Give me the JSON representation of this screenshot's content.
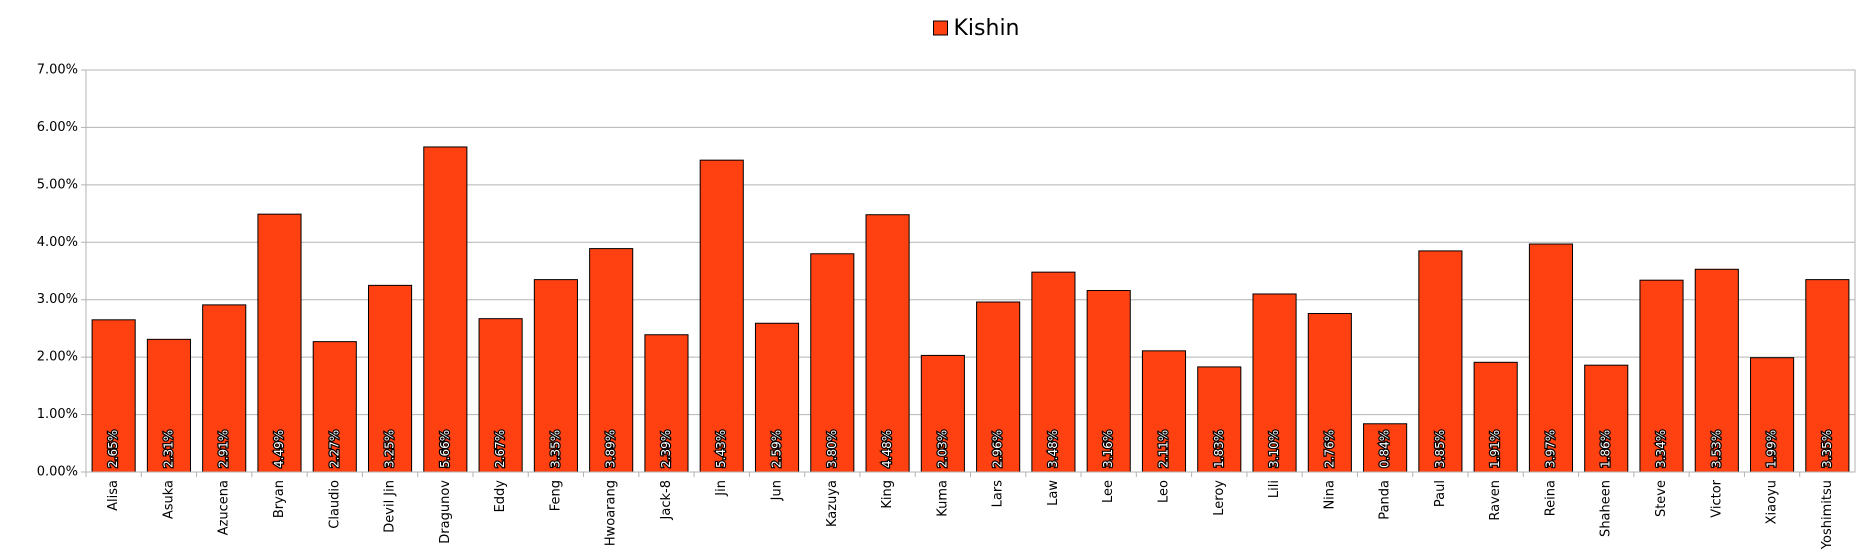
{
  "chart_data": {
    "type": "bar",
    "categories": [
      "Alisa",
      "Asuka",
      "Azucena",
      "Bryan",
      "Claudio",
      "Devil Jin",
      "Dragunov",
      "Eddy",
      "Feng",
      "Hwoarang",
      "Jack-8",
      "Jin",
      "Jun",
      "Kazuya",
      "King",
      "Kuma",
      "Lars",
      "Law",
      "Lee",
      "Leo",
      "Leroy",
      "Lili",
      "Nina",
      "Panda",
      "Paul",
      "Raven",
      "Reina",
      "Shaheen",
      "Steve",
      "Victor",
      "Xiaoyu",
      "Yoshimitsu"
    ],
    "series": [
      {
        "name": "Kishin",
        "color": "#ff4010",
        "values": [
          2.65,
          2.31,
          2.91,
          4.49,
          2.27,
          3.25,
          5.66,
          2.67,
          3.35,
          3.89,
          2.39,
          5.43,
          2.59,
          3.8,
          4.48,
          2.03,
          2.96,
          3.48,
          3.16,
          2.11,
          1.83,
          3.1,
          2.76,
          0.84,
          3.85,
          1.91,
          3.97,
          1.86,
          3.34,
          3.53,
          1.99,
          3.35
        ],
        "value_labels": [
          "2.65%",
          "2.31%",
          "2.91%",
          "4.49%",
          "2.27%",
          "3.25%",
          "5.66%",
          "2.67%",
          "3.35%",
          "3.89%",
          "2.39%",
          "5.43%",
          "2.59%",
          "3.80%",
          "4.48%",
          "2.03%",
          "2.96%",
          "3.48%",
          "3.16%",
          "2.11%",
          "1.83%",
          "3.10%",
          "2.76%",
          "0.84%",
          "3.85%",
          "1.91%",
          "3.97%",
          "1.86%",
          "3.34%",
          "3.53%",
          "1.99%",
          "3.35%"
        ]
      }
    ],
    "ylim": [
      0,
      7
    ],
    "yticks": [
      {
        "value": 0,
        "label": "0.00%"
      },
      {
        "value": 1,
        "label": "1.00%"
      },
      {
        "value": 2,
        "label": "2.00%"
      },
      {
        "value": 3,
        "label": "3.00%"
      },
      {
        "value": 4,
        "label": "4.00%"
      },
      {
        "value": 5,
        "label": "5.00%"
      },
      {
        "value": 6,
        "label": "6.00%"
      },
      {
        "value": 7,
        "label": "7.00%"
      }
    ],
    "grid": true,
    "legend": "top"
  }
}
